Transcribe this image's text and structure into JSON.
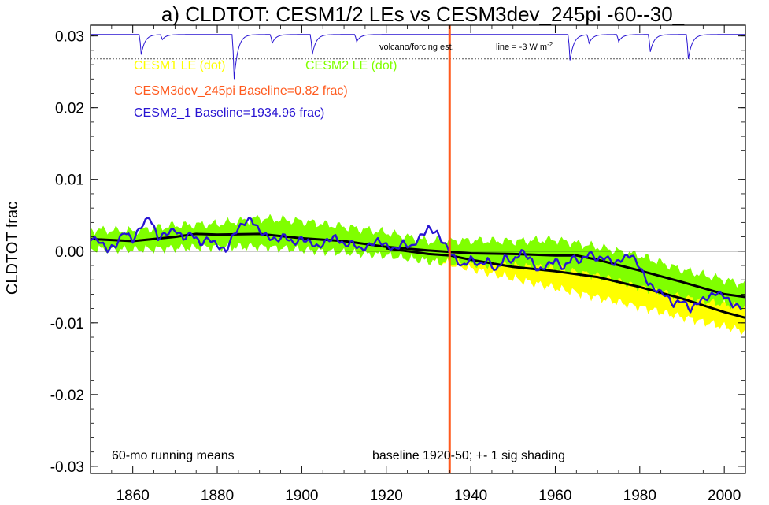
{
  "chart_data": {
    "type": "line",
    "title": "a) CLDTOT: CESM1/2 LEs vs CESM3dev_245pi -60--30_",
    "ylabel": "CLDTOT frac",
    "xlim": [
      1850,
      2005
    ],
    "ylim": [
      -0.031,
      0.0315
    ],
    "x_ticks": [
      1860,
      1880,
      1900,
      1920,
      1940,
      1960,
      1980,
      2000
    ],
    "x_tick_labels": [
      "1860",
      "1880",
      "1900",
      "1920",
      "1940",
      "1960",
      "1980",
      "2000"
    ],
    "y_ticks": [
      -0.03,
      -0.02,
      -0.01,
      0.0,
      0.01,
      0.02,
      0.03
    ],
    "y_tick_labels": [
      "-0.03",
      "-0.02",
      "-0.01",
      "0.00",
      "0.01",
      "0.02",
      "0.03"
    ],
    "legend": [
      {
        "text": "CESM1 LE (dot)",
        "color": "#ffff00"
      },
      {
        "text": "CESM2 LE (dot)",
        "color": "#80ff00"
      },
      {
        "text": "CESM3dev_245pi Baseline=0.82 frac)",
        "color": "#ff5a1e"
      },
      {
        "text": "CESM2_1 Baseline=1934.96 frac)",
        "color": "#2814d2"
      }
    ],
    "annotations": {
      "running_means": "60-mo running means",
      "baseline_note": "baseline 1920-50; +- 1 sig shading",
      "volcano_label": "volcano/forcing est.",
      "line_label": "line = -3 W m",
      "line_label_sup": "-2"
    },
    "reference_lines": {
      "zero": 0.0,
      "volcano_dotted": 0.0268,
      "vertical_year": 1935
    },
    "colors": {
      "cesm1_band": "#ffff00",
      "cesm2_band": "#80ff00",
      "ensemble_mean": "#000000",
      "cesm3dev_line": "#ff5a1e",
      "cesm2_1_line": "#2814d2",
      "volcano_line": "#2814d2"
    },
    "series": [
      {
        "name": "CESM1 LE (dot)",
        "kind": "band",
        "x": [
          1920,
          1935,
          1950,
          1965,
          1980,
          1990,
          2005
        ],
        "upper": [
          0.0018,
          0.0008,
          -0.0005,
          -0.0018,
          -0.0032,
          -0.0048,
          -0.0072
        ],
        "lower": [
          -0.0005,
          -0.0018,
          -0.0038,
          -0.0058,
          -0.0078,
          -0.0092,
          -0.0112
        ]
      },
      {
        "name": "CESM2 LE (dot)",
        "kind": "band",
        "x": [
          1850,
          1860,
          1870,
          1880,
          1890,
          1900,
          1910,
          1920,
          1930,
          1940,
          1950,
          1960,
          1970,
          1980,
          1990,
          2000,
          2005
        ],
        "upper": [
          0.003,
          0.0028,
          0.0036,
          0.0038,
          0.0046,
          0.0042,
          0.0034,
          0.0026,
          0.0014,
          0.0015,
          0.0014,
          0.0016,
          0.0006,
          -0.0006,
          -0.0026,
          -0.004,
          -0.0046
        ],
        "lower": [
          0.0003,
          0.0002,
          0.0004,
          0.0006,
          0.0006,
          0.0002,
          -0.0002,
          -0.0006,
          -0.0014,
          -0.0018,
          -0.002,
          -0.0024,
          -0.0034,
          -0.005,
          -0.0064,
          -0.0074,
          -0.0078
        ]
      },
      {
        "name": "CESM1 LE mean",
        "kind": "mean",
        "x": [
          1920,
          1930,
          1935,
          1940,
          1950,
          1960,
          1970,
          1980,
          1990,
          2000,
          2005
        ],
        "y": [
          0.0004,
          -0.0004,
          -0.0006,
          -0.0012,
          -0.0022,
          -0.0028,
          -0.0036,
          -0.005,
          -0.0066,
          -0.0085,
          -0.0093
        ]
      },
      {
        "name": "CESM2 LE mean",
        "kind": "mean",
        "x": [
          1850,
          1860,
          1870,
          1875,
          1880,
          1890,
          1900,
          1910,
          1920,
          1930,
          1940,
          1950,
          1960,
          1965,
          1970,
          1980,
          1990,
          2000,
          2005
        ],
        "y": [
          0.0017,
          0.0014,
          0.002,
          0.0024,
          0.0023,
          0.0024,
          0.0018,
          0.0014,
          0.0006,
          0.0001,
          -0.0003,
          -0.0004,
          -0.0006,
          -0.0006,
          -0.0012,
          -0.0027,
          -0.0043,
          -0.006,
          -0.0064
        ]
      },
      {
        "name": "CESM2_1 Baseline=1934.96 frac)",
        "kind": "line",
        "x": [
          1850,
          1852,
          1854,
          1856,
          1858,
          1860,
          1862,
          1864,
          1866,
          1868,
          1870,
          1872,
          1874,
          1876,
          1878,
          1880,
          1882,
          1884,
          1886,
          1888,
          1890,
          1892,
          1894,
          1896,
          1898,
          1900,
          1902,
          1904,
          1906,
          1908,
          1910,
          1912,
          1914,
          1916,
          1918,
          1920,
          1922,
          1924,
          1926,
          1928,
          1930,
          1932,
          1934,
          1936,
          1938,
          1940,
          1942,
          1944,
          1946,
          1948,
          1950,
          1952,
          1954,
          1956,
          1958,
          1960,
          1962,
          1964,
          1966,
          1968,
          1970,
          1972,
          1974,
          1976,
          1978,
          1980,
          1982,
          1984,
          1986,
          1988,
          1990,
          1992,
          1994,
          1996,
          1998,
          2000,
          2002,
          2004
        ],
        "y": [
          0.0018,
          0.0015,
          0.0002,
          0.0008,
          0.0028,
          0.0015,
          0.0035,
          0.0048,
          0.0018,
          0.0025,
          0.003,
          0.0018,
          0.0025,
          0.001,
          0.0018,
          0.0008,
          0.0,
          0.0025,
          0.0038,
          0.0045,
          0.0028,
          0.002,
          0.0015,
          0.0022,
          0.001,
          0.0018,
          0.0012,
          0.0005,
          0.0015,
          0.002,
          0.0008,
          0.0012,
          0.0002,
          0.0008,
          0.0015,
          0.0008,
          0.0002,
          0.0012,
          0.0005,
          0.002,
          0.0032,
          0.0025,
          0.0008,
          -0.0008,
          -0.0022,
          -0.001,
          -0.002,
          -0.0012,
          -0.0028,
          -0.0008,
          -0.0015,
          0.0,
          -0.001,
          -0.0028,
          -0.002,
          -0.0012,
          -0.0025,
          -0.0008,
          -0.0015,
          -0.0002,
          -0.0012,
          -0.0008,
          -0.0018,
          -0.001,
          -0.0005,
          -0.0022,
          -0.0045,
          -0.0055,
          -0.006,
          -0.0075,
          -0.0068,
          -0.0082,
          -0.007,
          -0.0065,
          -0.0058,
          -0.0062,
          -0.0075,
          -0.0078
        ]
      },
      {
        "name": "volcano forcing estimate",
        "kind": "volcano",
        "eruptions": [
          {
            "year": 1862,
            "depth": 0.0028
          },
          {
            "year": 1867,
            "depth": 0.0007
          },
          {
            "year": 1884,
            "depth": 0.0062
          },
          {
            "year": 1893,
            "depth": 0.0012
          },
          {
            "year": 1902.5,
            "depth": 0.0028
          },
          {
            "year": 1913,
            "depth": 0.001
          },
          {
            "year": 1963.5,
            "depth": 0.0036
          },
          {
            "year": 1968,
            "depth": 0.0012
          },
          {
            "year": 1975,
            "depth": 0.001
          },
          {
            "year": 1982.5,
            "depth": 0.0024
          },
          {
            "year": 1991.5,
            "depth": 0.0034
          }
        ]
      }
    ]
  }
}
